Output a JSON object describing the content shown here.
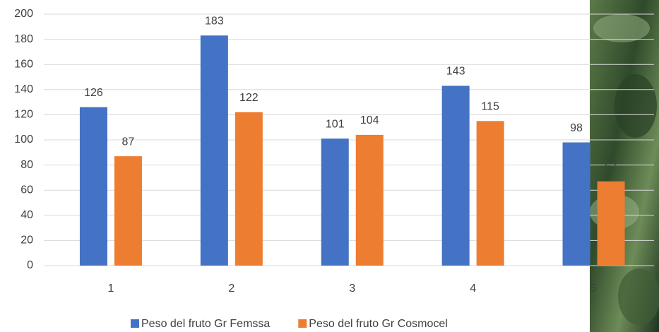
{
  "chart_data": {
    "type": "bar",
    "categories": [
      "1",
      "2",
      "3",
      "4",
      "5"
    ],
    "series": [
      {
        "name": "Peso del fruto Gr Femssa",
        "color": "#4472c4",
        "values": [
          126,
          183,
          101,
          143,
          98
        ]
      },
      {
        "name": "Peso del fruto Gr Cosmocel",
        "color": "#ed7d31",
        "values": [
          87,
          122,
          104,
          115,
          67
        ]
      }
    ],
    "ylim": [
      0,
      200
    ],
    "yticks": [
      0,
      20,
      40,
      60,
      80,
      100,
      120,
      140,
      160,
      180,
      200
    ],
    "grid": true,
    "legend": "bottom"
  }
}
